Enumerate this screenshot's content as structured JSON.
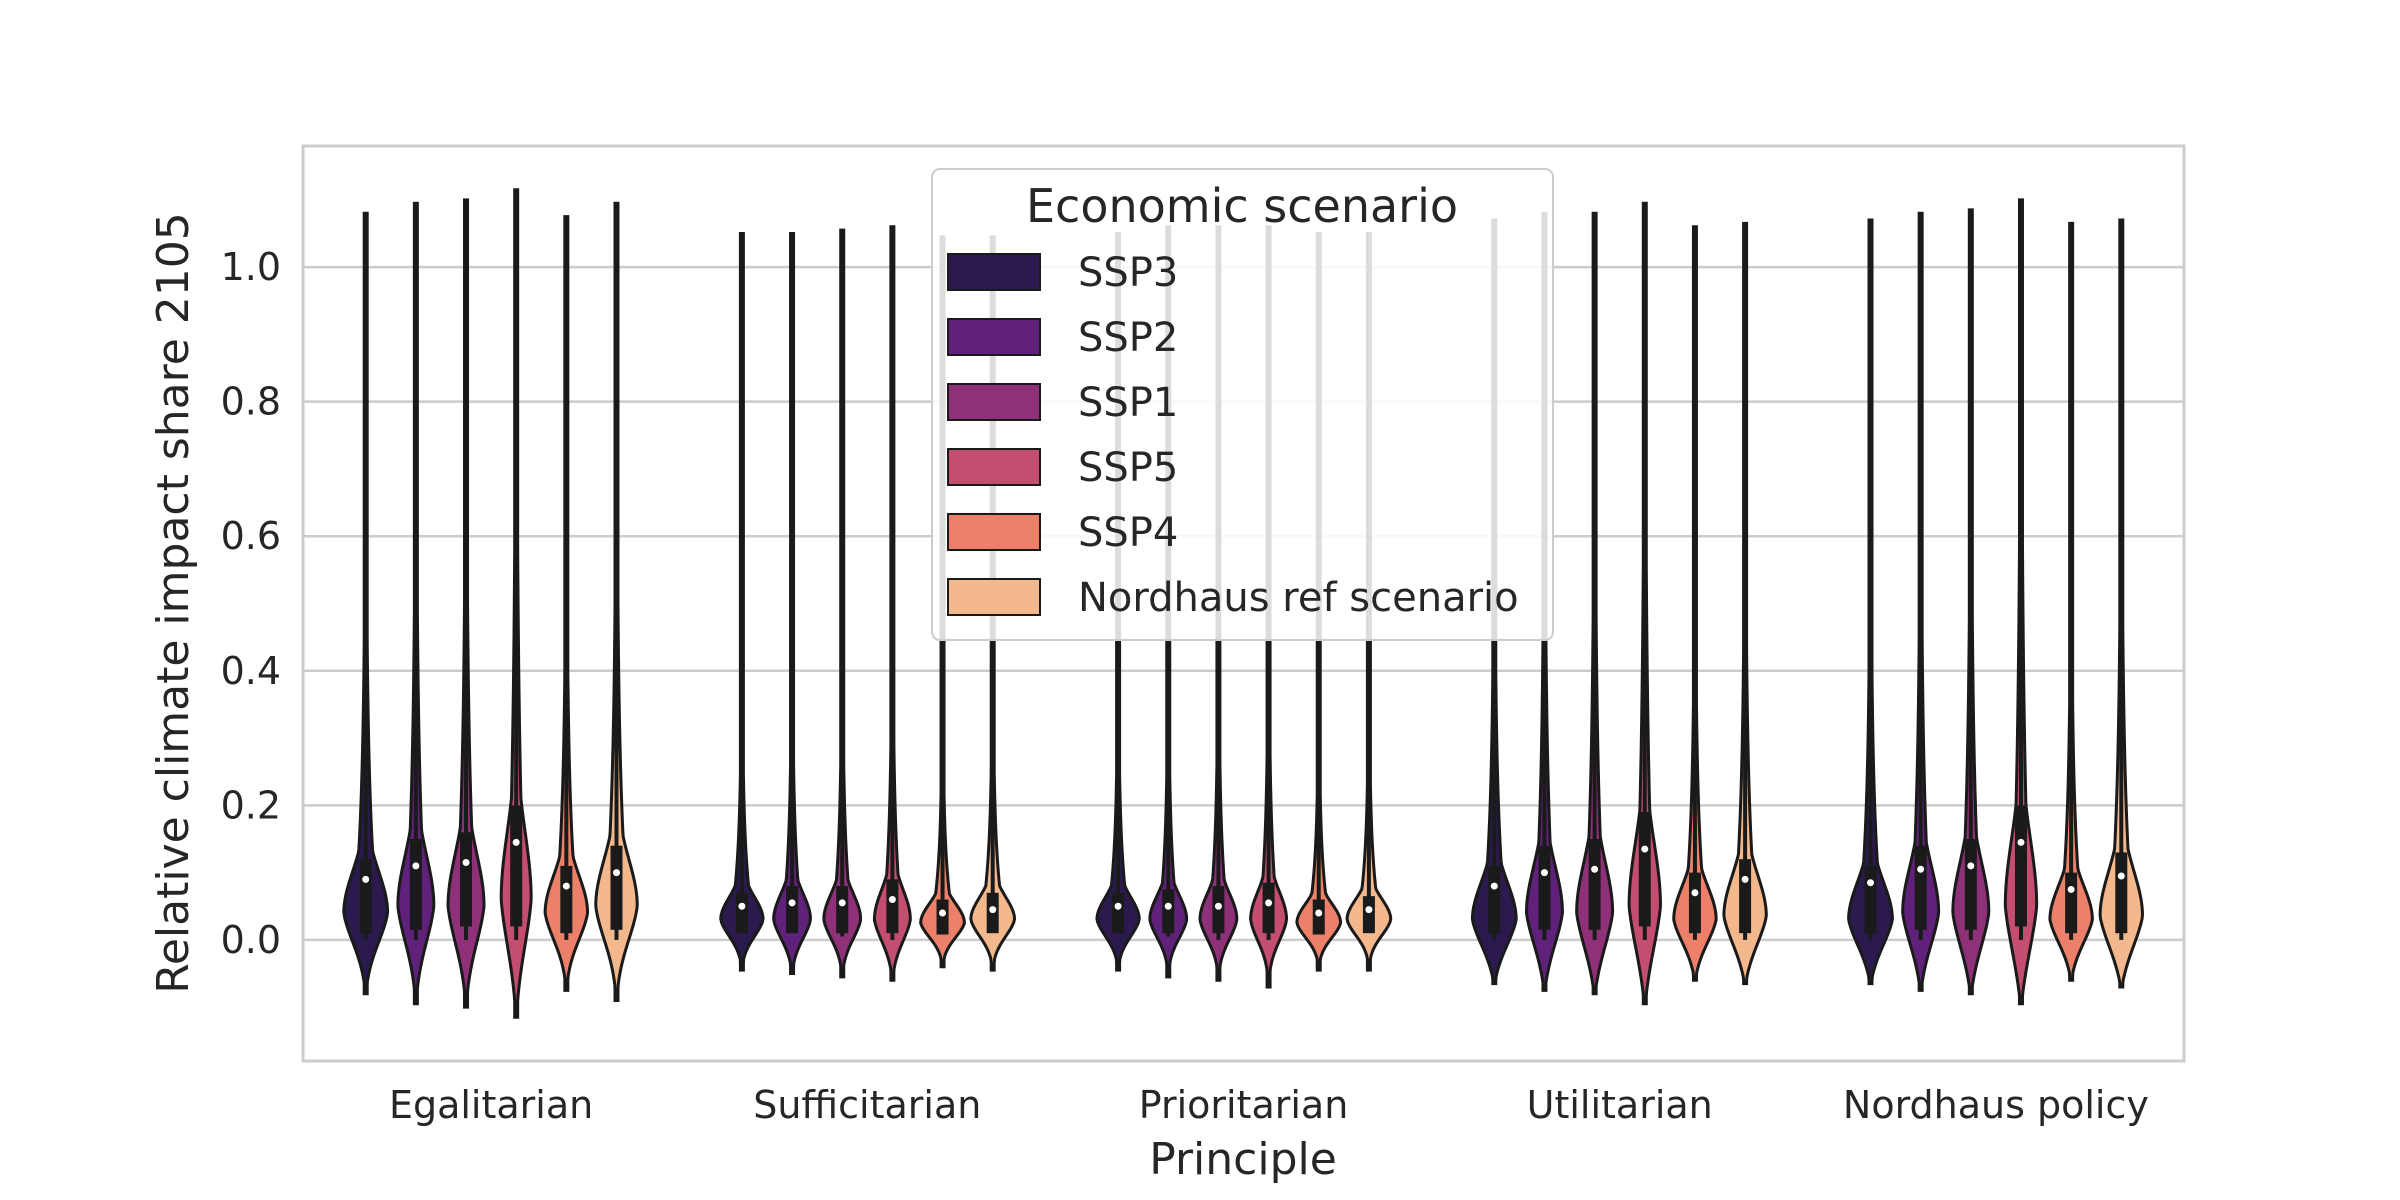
{
  "chart_data": {
    "type": "violin",
    "xlabel": "Principle",
    "ylabel": "Relative climate impact share 2105",
    "ylim": [
      -0.18,
      1.18
    ],
    "yticks": [
      0.0,
      0.2,
      0.4,
      0.6,
      0.8,
      1.0
    ],
    "ytick_labels": [
      "0.0",
      "0.2",
      "0.4",
      "0.6",
      "0.8",
      "1.0"
    ],
    "grid": true,
    "legend": {
      "title": "Economic scenario",
      "placement": "upper-center"
    },
    "categories": [
      "Egalitarian",
      "Sufficitarian",
      "Prioritarian",
      "Utilitarian",
      "Nordhaus policy"
    ],
    "series": [
      {
        "name": "SSP3",
        "color": "#2a1a4e",
        "stats": [
          {
            "min": -0.08,
            "max": 1.08,
            "median": 0.09,
            "q1": 0.01,
            "q3": 0.12,
            "mode": 0.04,
            "width": 0.95
          },
          {
            "min": -0.045,
            "max": 1.05,
            "median": 0.05,
            "q1": 0.01,
            "q3": 0.07,
            "mode": 0.03,
            "width": 0.92
          },
          {
            "min": -0.045,
            "max": 1.05,
            "median": 0.05,
            "q1": 0.01,
            "q3": 0.07,
            "mode": 0.03,
            "width": 0.92
          },
          {
            "min": -0.065,
            "max": 1.07,
            "median": 0.08,
            "q1": 0.01,
            "q3": 0.11,
            "mode": 0.03,
            "width": 0.95
          },
          {
            "min": -0.065,
            "max": 1.07,
            "median": 0.085,
            "q1": 0.01,
            "q3": 0.11,
            "mode": 0.03,
            "width": 0.95
          }
        ]
      },
      {
        "name": "SSP2",
        "color": "#5f2179",
        "stats": [
          {
            "min": -0.095,
            "max": 1.095,
            "median": 0.11,
            "q1": 0.015,
            "q3": 0.15,
            "mode": 0.05,
            "width": 0.78
          },
          {
            "min": -0.05,
            "max": 1.05,
            "median": 0.055,
            "q1": 0.01,
            "q3": 0.08,
            "mode": 0.03,
            "width": 0.8
          },
          {
            "min": -0.055,
            "max": 1.06,
            "median": 0.05,
            "q1": 0.01,
            "q3": 0.075,
            "mode": 0.03,
            "width": 0.8
          },
          {
            "min": -0.075,
            "max": 1.08,
            "median": 0.1,
            "q1": 0.015,
            "q3": 0.14,
            "mode": 0.04,
            "width": 0.78
          },
          {
            "min": -0.075,
            "max": 1.08,
            "median": 0.105,
            "q1": 0.015,
            "q3": 0.14,
            "mode": 0.04,
            "width": 0.78
          }
        ]
      },
      {
        "name": "SSP1",
        "color": "#8f3179",
        "stats": [
          {
            "min": -0.1,
            "max": 1.1,
            "median": 0.115,
            "q1": 0.02,
            "q3": 0.16,
            "mode": 0.05,
            "width": 0.78
          },
          {
            "min": -0.055,
            "max": 1.055,
            "median": 0.055,
            "q1": 0.01,
            "q3": 0.08,
            "mode": 0.03,
            "width": 0.8
          },
          {
            "min": -0.06,
            "max": 1.06,
            "median": 0.05,
            "q1": 0.01,
            "q3": 0.08,
            "mode": 0.03,
            "width": 0.8
          },
          {
            "min": -0.08,
            "max": 1.08,
            "median": 0.105,
            "q1": 0.015,
            "q3": 0.15,
            "mode": 0.04,
            "width": 0.78
          },
          {
            "min": -0.08,
            "max": 1.085,
            "median": 0.11,
            "q1": 0.015,
            "q3": 0.15,
            "mode": 0.04,
            "width": 0.78
          }
        ]
      },
      {
        "name": "SSP5",
        "color": "#c44e6f",
        "stats": [
          {
            "min": -0.115,
            "max": 1.115,
            "median": 0.145,
            "q1": 0.02,
            "q3": 0.2,
            "mode": 0.06,
            "width": 0.65
          },
          {
            "min": -0.06,
            "max": 1.06,
            "median": 0.06,
            "q1": 0.01,
            "q3": 0.09,
            "mode": 0.03,
            "width": 0.78
          },
          {
            "min": -0.07,
            "max": 1.06,
            "median": 0.055,
            "q1": 0.01,
            "q3": 0.085,
            "mode": 0.03,
            "width": 0.78
          },
          {
            "min": -0.095,
            "max": 1.095,
            "median": 0.135,
            "q1": 0.02,
            "q3": 0.19,
            "mode": 0.05,
            "width": 0.68
          },
          {
            "min": -0.095,
            "max": 1.1,
            "median": 0.145,
            "q1": 0.02,
            "q3": 0.2,
            "mode": 0.05,
            "width": 0.68
          }
        ]
      },
      {
        "name": "SSP4",
        "color": "#ec8068",
        "stats": [
          {
            "min": -0.075,
            "max": 1.075,
            "median": 0.08,
            "q1": 0.01,
            "q3": 0.11,
            "mode": 0.04,
            "width": 0.92
          },
          {
            "min": -0.04,
            "max": 1.045,
            "median": 0.04,
            "q1": 0.008,
            "q3": 0.06,
            "mode": 0.025,
            "width": 0.95
          },
          {
            "min": -0.045,
            "max": 1.05,
            "median": 0.04,
            "q1": 0.008,
            "q3": 0.06,
            "mode": 0.025,
            "width": 0.95
          },
          {
            "min": -0.06,
            "max": 1.06,
            "median": 0.07,
            "q1": 0.01,
            "q3": 0.1,
            "mode": 0.03,
            "width": 0.92
          },
          {
            "min": -0.06,
            "max": 1.065,
            "median": 0.075,
            "q1": 0.01,
            "q3": 0.1,
            "mode": 0.03,
            "width": 0.92
          }
        ]
      },
      {
        "name": "Nordhaus ref scenario",
        "color": "#f3b98c",
        "stats": [
          {
            "min": -0.09,
            "max": 1.095,
            "median": 0.1,
            "q1": 0.015,
            "q3": 0.14,
            "mode": 0.05,
            "width": 0.9
          },
          {
            "min": -0.045,
            "max": 1.045,
            "median": 0.045,
            "q1": 0.01,
            "q3": 0.07,
            "mode": 0.03,
            "width": 0.95
          },
          {
            "min": -0.045,
            "max": 1.05,
            "median": 0.045,
            "q1": 0.01,
            "q3": 0.065,
            "mode": 0.03,
            "width": 0.95
          },
          {
            "min": -0.065,
            "max": 1.065,
            "median": 0.09,
            "q1": 0.01,
            "q3": 0.12,
            "mode": 0.035,
            "width": 0.92
          },
          {
            "min": -0.07,
            "max": 1.07,
            "median": 0.095,
            "q1": 0.01,
            "q3": 0.13,
            "mode": 0.035,
            "width": 0.92
          }
        ]
      }
    ]
  }
}
